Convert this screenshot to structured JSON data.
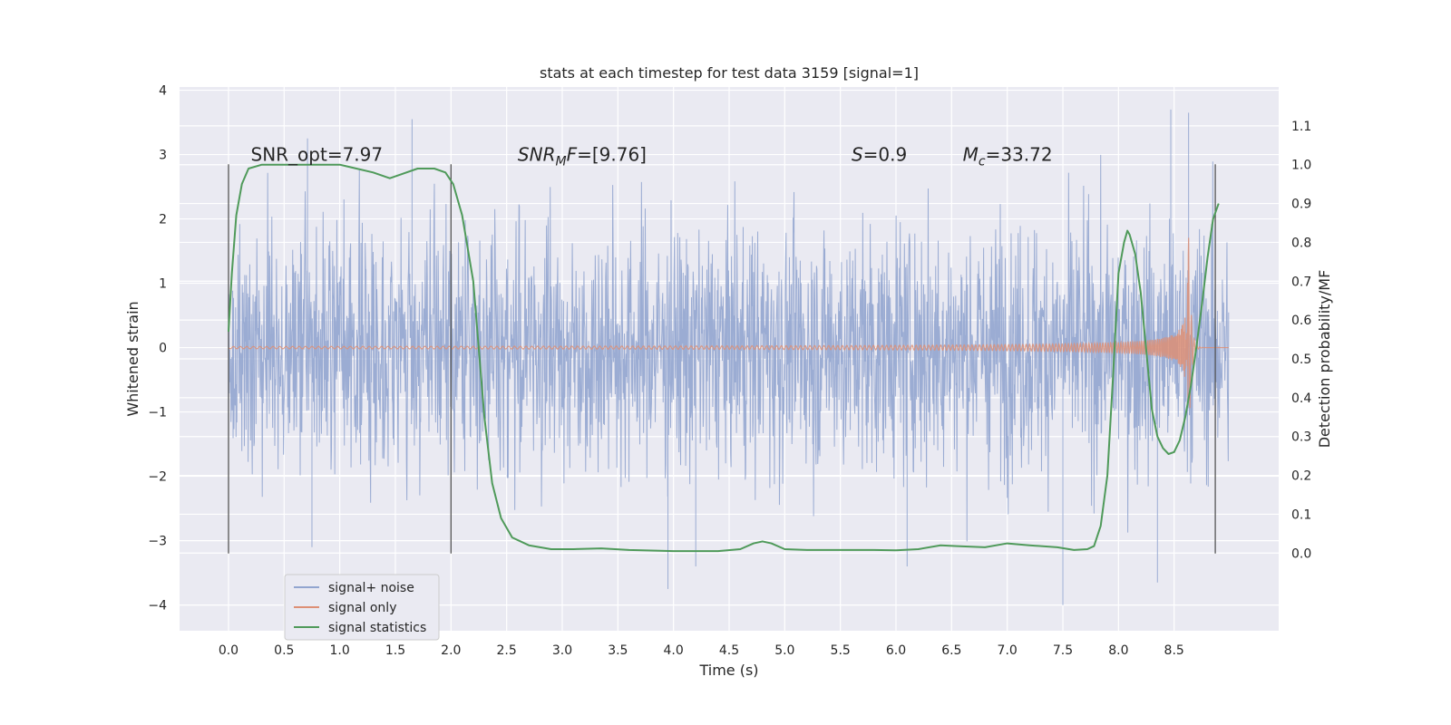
{
  "chart_data": {
    "type": "line",
    "title": "stats at each timestep for test data 3159 [signal=1]",
    "xlabel": "Time (s)",
    "ylabel": "Whitened strain",
    "y2label": "Detection probability/MF",
    "xlim": [
      -0.44,
      9.44
    ],
    "ylim": [
      -4.4,
      4.05
    ],
    "y2lim": [
      -0.2,
      1.2
    ],
    "x_ticks": [
      0.0,
      0.5,
      1.0,
      1.5,
      2.0,
      2.5,
      3.0,
      3.5,
      4.0,
      4.5,
      5.0,
      5.5,
      6.0,
      6.5,
      7.0,
      7.5,
      8.0,
      8.5
    ],
    "x_tick_labels": [
      "0.0",
      "0.5",
      "1.0",
      "1.5",
      "2.0",
      "2.5",
      "3.0",
      "3.5",
      "4.0",
      "4.5",
      "5.0",
      "5.5",
      "6.0",
      "6.5",
      "7.0",
      "7.5",
      "8.0",
      "8.5"
    ],
    "y_ticks": [
      4,
      3,
      2,
      1,
      0,
      -1,
      -2,
      -3,
      -4
    ],
    "y_tick_labels": [
      "4",
      "3",
      "2",
      "1",
      "0",
      "−1",
      "−2",
      "−3",
      "−4"
    ],
    "y2_ticks": [
      1.1,
      1.0,
      0.9,
      0.8,
      0.7,
      0.6,
      0.5,
      0.4,
      0.3,
      0.2,
      0.1,
      0.0
    ],
    "y2_tick_labels": [
      "1.1",
      "1.0",
      "0.9",
      "0.8",
      "0.7",
      "0.6",
      "0.5",
      "0.4",
      "0.3",
      "0.2",
      "0.1",
      "0.0"
    ],
    "grid": true,
    "legend_position": "lower-left",
    "annotations": [
      {
        "id": "snr-opt",
        "text": "SNR_opt=7.97",
        "x": 0.2,
        "y": 2.9
      },
      {
        "id": "snr-mf",
        "text": "SNR_MF=[9.76]",
        "x": 2.6,
        "y": 2.9
      },
      {
        "id": "s",
        "text": "S=0.9",
        "x": 5.6,
        "y": 2.9
      },
      {
        "id": "mc",
        "text": "M_c=33.72",
        "x": 6.6,
        "y": 2.9
      }
    ],
    "vertical_markers": {
      "x": [
        0.0,
        2.0,
        8.87
      ],
      "y_range": [
        -3.2,
        2.85
      ]
    },
    "series": [
      {
        "name": "signal+ noise",
        "axis": "left",
        "color": "#92a5cf",
        "kind": "noise",
        "t_range": [
          0.0,
          8.99
        ],
        "sigma": 1.0,
        "extreme_points": [
          [
            0.71,
            3.25
          ],
          [
            0.75,
            -3.1
          ],
          [
            1.65,
            3.55
          ],
          [
            3.95,
            -3.75
          ],
          [
            8.47,
            3.7
          ],
          [
            8.63,
            3.65
          ],
          [
            7.5,
            -4.0
          ],
          [
            8.35,
            -3.65
          ],
          [
            6.1,
            -3.4
          ],
          [
            4.2,
            -3.4
          ]
        ]
      },
      {
        "name": "signal only",
        "axis": "left",
        "color": "#dd8f75",
        "kind": "chirp",
        "t_range": [
          0.0,
          8.99
        ],
        "merger_time": 8.63,
        "peak_amplitude": 1.75
      },
      {
        "name": "signal statistics",
        "axis": "right",
        "color": "#4f9a5a",
        "kind": "line",
        "x": [
          0.0,
          0.03,
          0.07,
          0.12,
          0.18,
          0.3,
          0.5,
          0.8,
          1.0,
          1.15,
          1.3,
          1.45,
          1.55,
          1.7,
          1.85,
          1.95,
          2.02,
          2.1,
          2.2,
          2.3,
          2.37,
          2.45,
          2.55,
          2.7,
          2.9,
          3.1,
          3.35,
          3.6,
          4.0,
          4.4,
          4.6,
          4.72,
          4.8,
          4.88,
          5.0,
          5.2,
          5.5,
          5.8,
          6.0,
          6.2,
          6.4,
          6.55,
          6.8,
          7.0,
          7.2,
          7.45,
          7.6,
          7.72,
          7.78,
          7.84,
          7.9,
          7.95,
          8.0,
          8.05,
          8.08,
          8.1,
          8.15,
          8.2,
          8.25,
          8.3,
          8.35,
          8.4,
          8.45,
          8.5,
          8.55,
          8.6,
          8.65,
          8.7,
          8.75,
          8.8,
          8.85,
          8.9
        ],
        "y": [
          0.57,
          0.72,
          0.87,
          0.95,
          0.99,
          1.0,
          1.0,
          1.0,
          1.0,
          0.99,
          0.98,
          0.965,
          0.975,
          0.99,
          0.99,
          0.98,
          0.95,
          0.87,
          0.7,
          0.35,
          0.18,
          0.09,
          0.04,
          0.02,
          0.01,
          0.01,
          0.012,
          0.008,
          0.005,
          0.005,
          0.01,
          0.025,
          0.03,
          0.025,
          0.01,
          0.008,
          0.008,
          0.008,
          0.007,
          0.01,
          0.02,
          0.018,
          0.015,
          0.025,
          0.02,
          0.015,
          0.008,
          0.01,
          0.018,
          0.07,
          0.2,
          0.45,
          0.72,
          0.8,
          0.83,
          0.82,
          0.77,
          0.67,
          0.52,
          0.37,
          0.3,
          0.27,
          0.255,
          0.26,
          0.29,
          0.35,
          0.43,
          0.53,
          0.64,
          0.76,
          0.86,
          0.9
        ]
      }
    ]
  }
}
